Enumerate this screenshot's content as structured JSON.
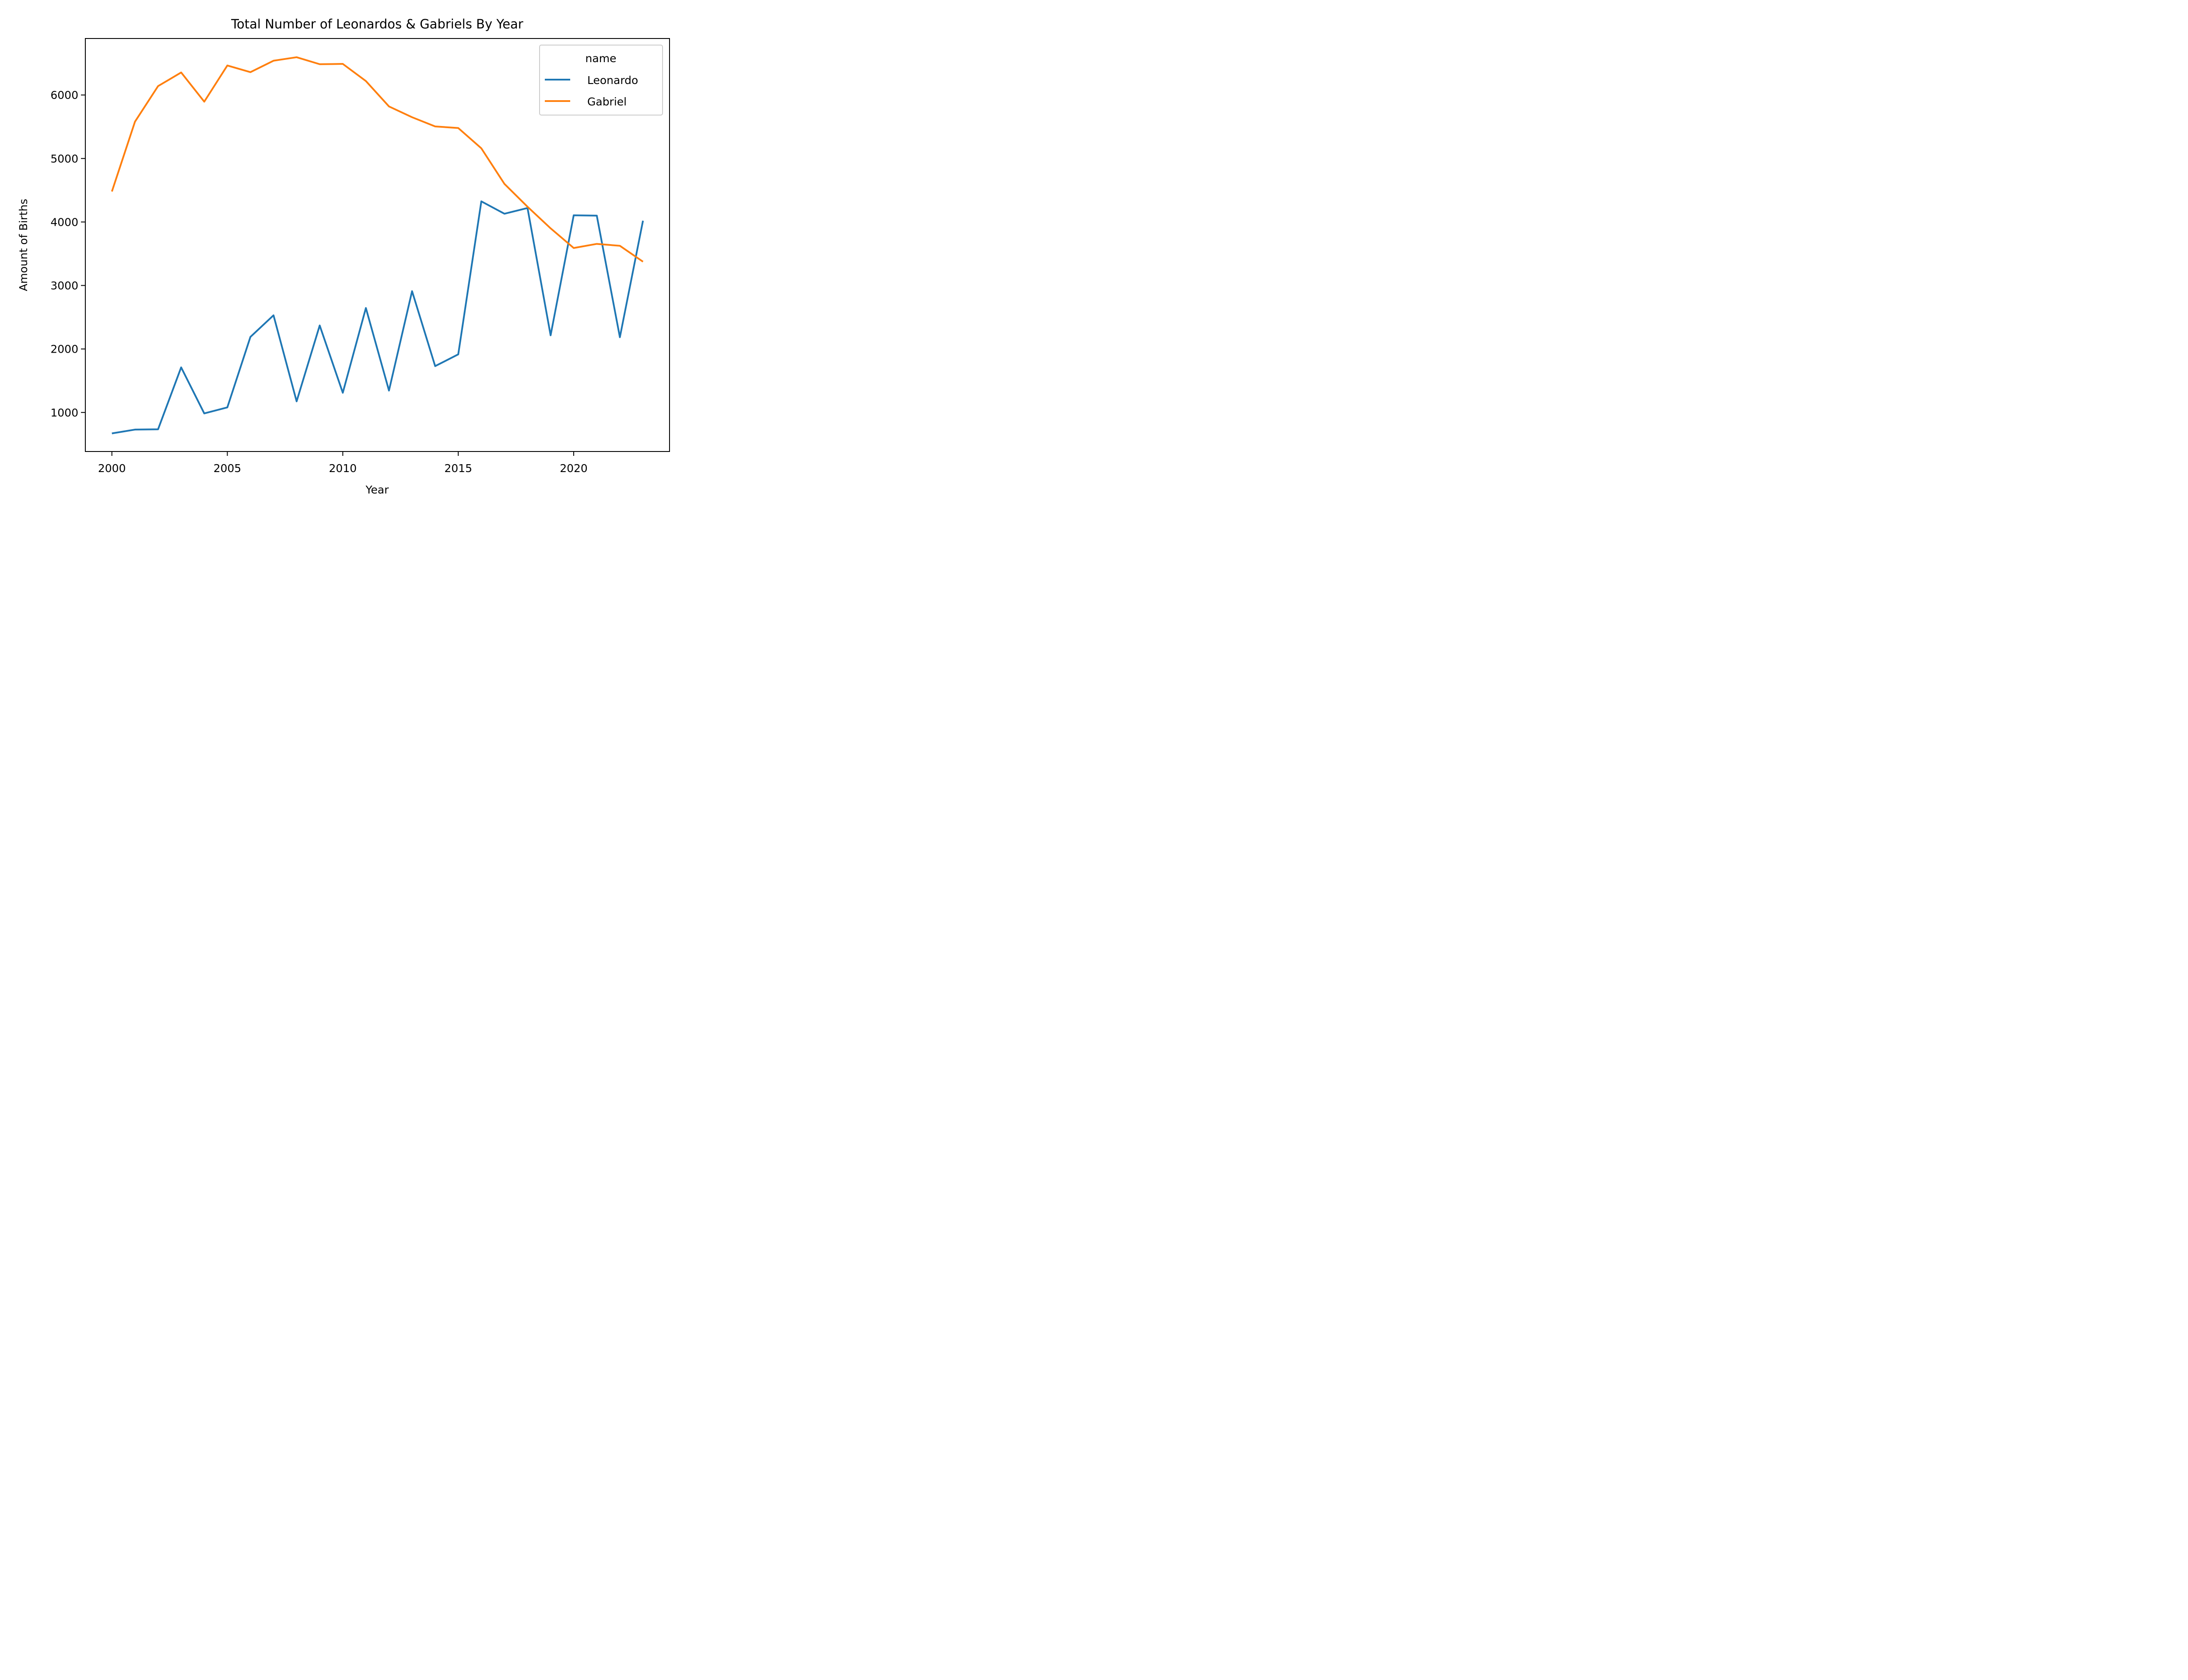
{
  "chart_data": {
    "type": "line",
    "title": "Total Number of Leonardos & Gabriels By Year",
    "xlabel": "Year",
    "ylabel": "Amount of Births",
    "x": [
      2000,
      2001,
      2002,
      2003,
      2004,
      2005,
      2006,
      2007,
      2008,
      2009,
      2010,
      2011,
      2012,
      2013,
      2014,
      2015,
      2016,
      2017,
      2018,
      2019,
      2020,
      2021,
      2022,
      2023
    ],
    "series": [
      {
        "name": "Leonardo",
        "color": "#1f77b4",
        "values": [
          670,
          730,
          735,
          1710,
          985,
          1080,
          2190,
          2530,
          1175,
          2370,
          1310,
          2645,
          1345,
          2910,
          1730,
          1915,
          4325,
          4130,
          4220,
          2215,
          4105,
          4100,
          2185,
          4020
        ]
      },
      {
        "name": "Gabriel",
        "color": "#ff7f0e",
        "values": [
          4480,
          5580,
          6140,
          6355,
          5895,
          6465,
          6360,
          6540,
          6595,
          6485,
          6490,
          6220,
          5820,
          5650,
          5505,
          5480,
          5160,
          4600,
          4240,
          3900,
          3590,
          3655,
          3625,
          3375
        ]
      }
    ],
    "xticks": [
      "2000",
      "2005",
      "2010",
      "2015",
      "2020"
    ],
    "yticks": [
      "1000",
      "2000",
      "3000",
      "4000",
      "5000",
      "6000"
    ],
    "xlim": [
      1998.85,
      2024.15
    ],
    "ylim": [
      385,
      6890
    ],
    "grid": false,
    "legend": {
      "title": "name",
      "placement": "top-right",
      "entries": [
        "Leonardo",
        "Gabriel"
      ]
    }
  }
}
